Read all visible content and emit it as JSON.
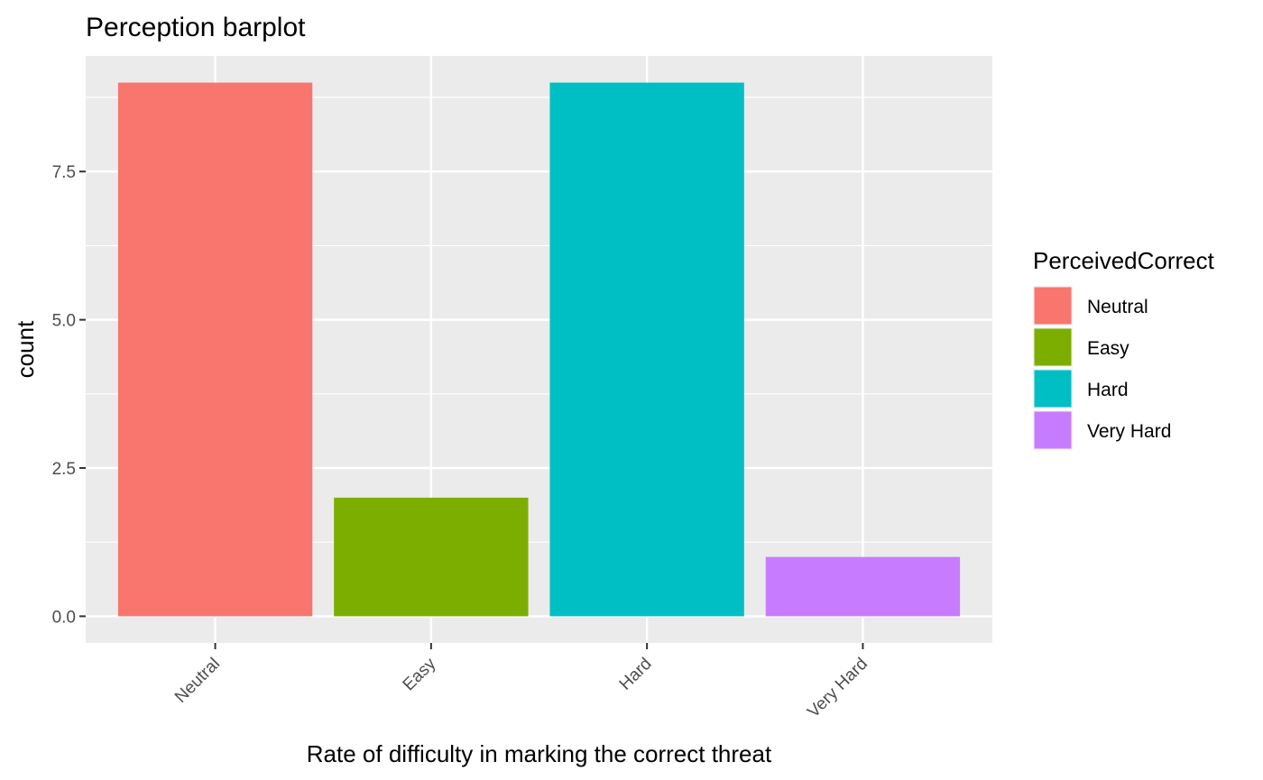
{
  "chart_data": {
    "type": "bar",
    "title": "Perception barplot",
    "xlabel": "Rate of difficulty in marking the correct threat",
    "ylabel": "count",
    "categories": [
      "Neutral",
      "Easy",
      "Hard",
      "Very Hard"
    ],
    "values": [
      9,
      2,
      9,
      1
    ],
    "colors": [
      "#F8766D",
      "#7CAE00",
      "#00BFC4",
      "#C77CFF"
    ],
    "ylim": [
      -0.45,
      9.45
    ],
    "yticks": [
      0,
      2.5,
      5,
      7.5
    ],
    "ytick_labels": [
      "0.0",
      "2.5",
      "5.0",
      "7.5"
    ],
    "grid": true,
    "panel_background": "#EBEBEB",
    "legend": {
      "title": "PerceivedCorrect",
      "position": "right",
      "entries": [
        "Neutral",
        "Easy",
        "Hard",
        "Very Hard"
      ]
    }
  }
}
